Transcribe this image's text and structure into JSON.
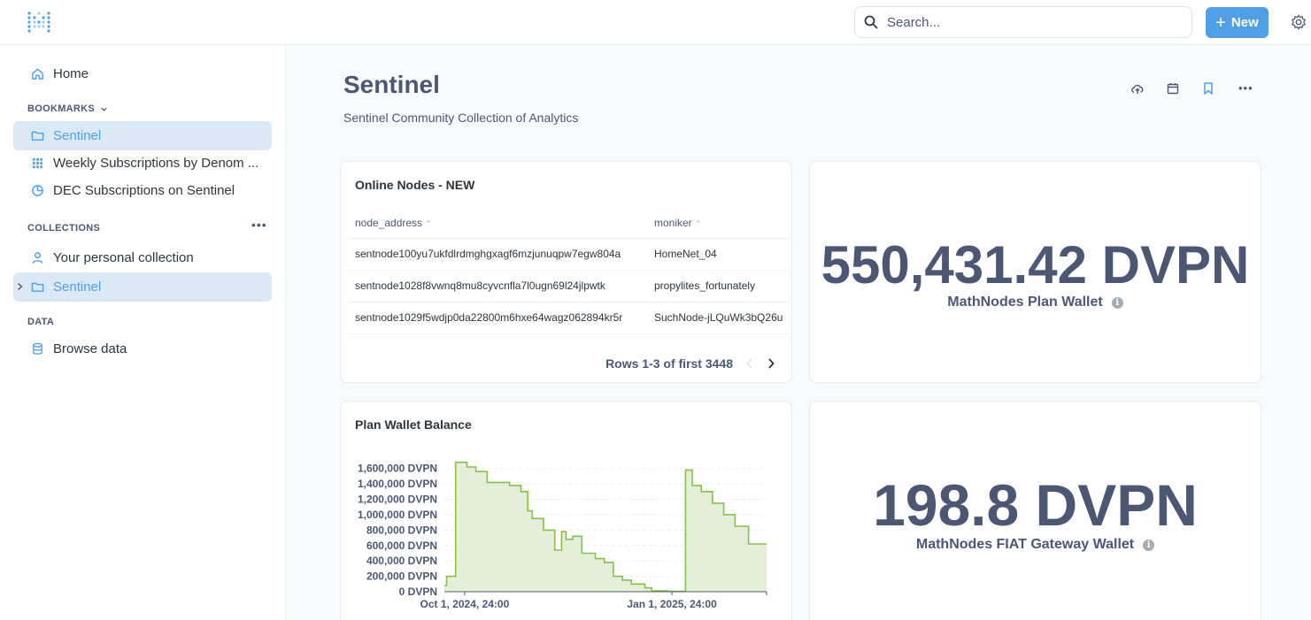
{
  "topbar": {
    "search_placeholder": "Search...",
    "new_label": "New",
    "search_icon": "search-icon",
    "gear_icon": "gear-icon",
    "accent": "#509ee3"
  },
  "sidebar": {
    "home_label": "Home",
    "bookmarks_heading": "BOOKMARKS",
    "bookmarks": [
      {
        "label": "Sentinel",
        "icon": "folder-icon",
        "active": true
      },
      {
        "label": "Weekly Subscriptions by Denom ...",
        "icon": "grid-icon",
        "active": false
      },
      {
        "label": "DEC Subscriptions on Sentinel",
        "icon": "pie-icon",
        "active": false
      }
    ],
    "collections_heading": "COLLECTIONS",
    "collections": [
      {
        "label": "Your personal collection",
        "icon": "person-icon",
        "active": false
      },
      {
        "label": "Sentinel",
        "icon": "folder-icon",
        "active": true
      }
    ],
    "data_heading": "DATA",
    "browse_label": "Browse data"
  },
  "dashboard": {
    "title": "Sentinel",
    "description": "Sentinel Community Collection of Analytics"
  },
  "online_nodes": {
    "title": "Online Nodes - NEW",
    "columns": [
      "node_address",
      "moniker"
    ],
    "rows": [
      [
        "sentnode100yu7ukfdlrdmghgxagf6mzjunuqpw7egw804a",
        "HomeNet_04"
      ],
      [
        "sentnode1028f8vwnq8mu8cyvcnfla7l0ugn69l24jlpwtk",
        "propylites_fortunately"
      ],
      [
        "sentnode1029f5wdjp0da22800m6hxe64wagz062894kr5r",
        "SuchNode-jLQuWk3bQ26u"
      ]
    ],
    "pager_text": "Rows 1-3 of first 3448"
  },
  "plan_wallet_scalar": {
    "value": "550,431.42 DVPN",
    "label": "MathNodes Plan Wallet"
  },
  "fiat_wallet_scalar": {
    "value": "198.8 DVPN",
    "label": "MathNodes FIAT Gateway Wallet"
  },
  "plan_wallet_chart": {
    "title": "Plan Wallet Balance"
  },
  "chart_data": {
    "type": "area",
    "title": "Plan Wallet Balance",
    "xlabel": "",
    "ylabel": "",
    "ylim": [
      0,
      1700000
    ],
    "yticks": [
      "0 DVPN",
      "200,000 DVPN",
      "400,000 DVPN",
      "600,000 DVPN",
      "800,000 DVPN",
      "1,000,000 DVPN",
      "1,200,000 DVPN",
      "1,400,000 DVPN",
      "1,600,000 DVPN"
    ],
    "ytick_values": [
      0,
      200000,
      400000,
      600000,
      800000,
      1000000,
      1200000,
      1400000,
      1600000
    ],
    "xticks": [
      "Oct 1, 2024, 24:00",
      "Jan 1, 2025, 24:00"
    ],
    "xtick_days": [
      0,
      92
    ],
    "x_start_day": -9,
    "x_end_day": 134,
    "color": "#88bf4d",
    "fill": "#e3efd7",
    "grid": true,
    "series": [
      {
        "name": "",
        "x": [
          -9,
          -8,
          -8,
          -4,
          -4,
          1,
          1,
          5,
          5,
          10,
          10,
          20,
          20,
          25,
          25,
          28,
          28,
          30,
          30,
          35,
          35,
          40,
          40,
          43,
          43,
          45,
          45,
          48,
          48,
          52,
          52,
          58,
          58,
          62,
          62,
          66,
          66,
          70,
          70,
          74,
          74,
          80,
          80,
          83,
          83,
          90,
          90,
          98,
          98,
          101,
          101,
          105,
          105,
          110,
          110,
          115,
          115,
          120,
          120,
          126,
          126,
          134
        ],
        "y": [
          80000,
          80000,
          200000,
          200000,
          1680000,
          1680000,
          1620000,
          1620000,
          1560000,
          1560000,
          1420000,
          1420000,
          1380000,
          1380000,
          1300000,
          1300000,
          1050000,
          1050000,
          950000,
          950000,
          800000,
          800000,
          540000,
          540000,
          780000,
          780000,
          680000,
          680000,
          720000,
          720000,
          500000,
          500000,
          430000,
          430000,
          380000,
          380000,
          200000,
          200000,
          150000,
          150000,
          100000,
          100000,
          50000,
          50000,
          10000,
          10000,
          5000,
          5000,
          1580000,
          1580000,
          1380000,
          1380000,
          1300000,
          1300000,
          1150000,
          1150000,
          1000000,
          1000000,
          850000,
          850000,
          620000,
          620000
        ]
      }
    ]
  }
}
